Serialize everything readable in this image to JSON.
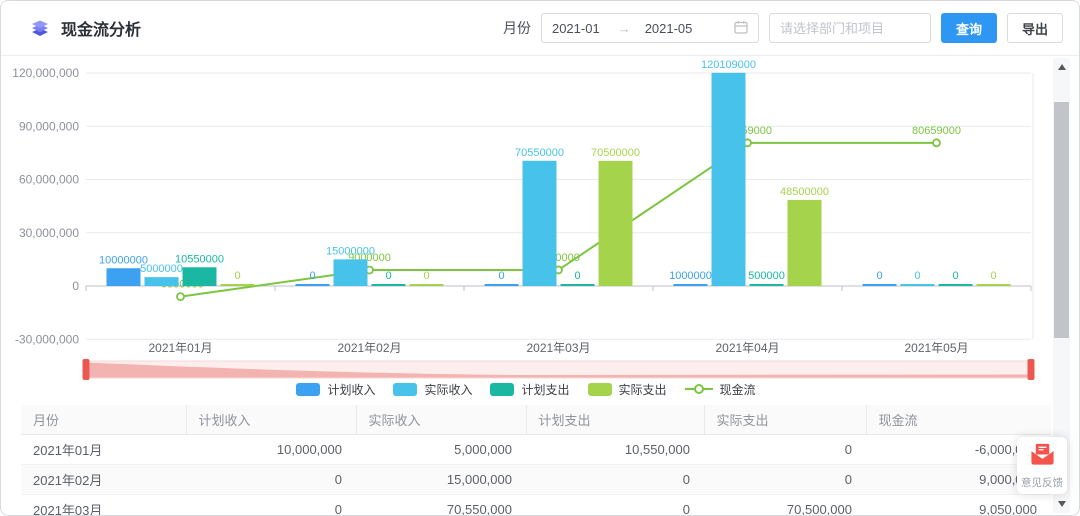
{
  "header": {
    "title": "现金流分析",
    "month_label": "月份",
    "date_start": "2021-01",
    "date_arrow": "→",
    "date_end": "2021-05",
    "dept_placeholder": "请选择部门和项目",
    "search_label": "查询",
    "export_label": "导出"
  },
  "colors": {
    "accent_blue": "#2e97f3",
    "planned_income": "#3ba1f0",
    "actual_income": "#47c2ea",
    "planned_expense": "#1ab8a3",
    "actual_expense": "#a5d44c",
    "cashflow_line": "#7cc540",
    "datazoom_handle": "#ec5850",
    "datazoom_fill": "#fdeeee",
    "datazoom_shadow": "#f3b3b0",
    "app_icon_purple": "#6f74ee"
  },
  "chart_data": {
    "type": "bar",
    "categories": [
      "2021年01月",
      "2021年02月",
      "2021年03月",
      "2021年04月",
      "2021年05月"
    ],
    "series": [
      {
        "name": "计划收入",
        "type": "bar",
        "color": "#3ba1f0",
        "values": [
          10000000,
          0,
          0,
          1000000,
          0
        ]
      },
      {
        "name": "实际收入",
        "type": "bar",
        "color": "#47c2ea",
        "values": [
          5000000,
          15000000,
          70550000,
          120109000,
          0
        ]
      },
      {
        "name": "计划支出",
        "type": "bar",
        "color": "#1ab8a3",
        "values": [
          10550000,
          0,
          0,
          500000,
          0
        ]
      },
      {
        "name": "实际支出",
        "type": "bar",
        "color": "#a5d44c",
        "values": [
          0,
          0,
          70500000,
          48500000,
          0
        ]
      },
      {
        "name": "现金流",
        "type": "line",
        "color": "#7cc540",
        "values": [
          -6000000,
          9000000,
          9050000,
          80659000,
          80659000
        ]
      }
    ],
    "title": "",
    "xlabel": "",
    "ylabel": "",
    "y_ticks": [
      "120,000,000",
      "90,000,000",
      "60,000,000",
      "30,000,000",
      "0",
      "-30,000,000"
    ],
    "y_tick_values": [
      120000000,
      90000000,
      60000000,
      30000000,
      0,
      -30000000
    ],
    "ylim": [
      -30000000,
      135000000
    ],
    "grid": true,
    "legend_position": "bottom",
    "has_datazoom_slider": true
  },
  "table": {
    "columns": [
      "月份",
      "计划收入",
      "实际收入",
      "计划支出",
      "实际支出",
      "现金流"
    ],
    "rows": [
      [
        "2021年01月",
        "10,000,000",
        "5,000,000",
        "10,550,000",
        "0",
        "-6,000,000"
      ],
      [
        "2021年02月",
        "0",
        "15,000,000",
        "0",
        "0",
        "9,000,000"
      ],
      [
        "2021年03月",
        "0",
        "70,550,000",
        "0",
        "70,500,000",
        "9,050,000"
      ]
    ]
  },
  "feedback": {
    "label": "意见反馈"
  }
}
